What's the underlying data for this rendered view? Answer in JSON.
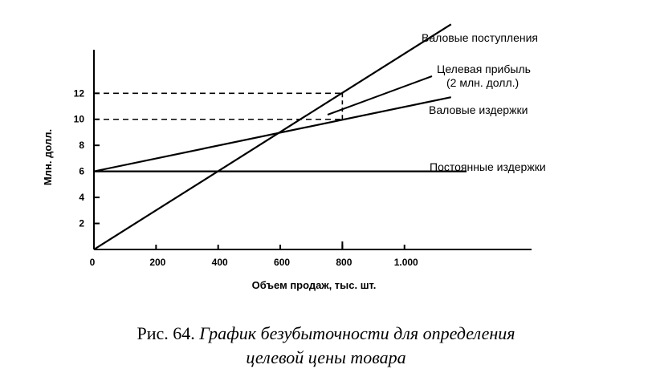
{
  "chart_data": {
    "type": "line",
    "xlabel": "Объем продаж, тыс. шт.",
    "ylabel": "Млн. долл.",
    "xlim": [
      0,
      1200
    ],
    "ylim": [
      0,
      16
    ],
    "x_ticks": [
      0,
      200,
      400,
      600,
      800,
      1000
    ],
    "x_tick_labels": [
      "0",
      "200",
      "400",
      "600",
      "800",
      "1.000"
    ],
    "y_ticks": [
      2,
      4,
      6,
      8,
      10,
      12
    ],
    "y_tick_labels": [
      "2",
      "4",
      "6",
      "8",
      "10",
      "12"
    ],
    "grid": false,
    "series": [
      {
        "name": "Валовые поступления",
        "x": [
          0,
          1150
        ],
        "y": [
          0,
          17.3
        ]
      },
      {
        "name": "Валовые издержки",
        "x": [
          0,
          1150
        ],
        "y": [
          6,
          11.7
        ]
      },
      {
        "name": "Постоянные издержки",
        "x": [
          0,
          1200
        ],
        "y": [
          6,
          6
        ]
      }
    ],
    "annotations": {
      "target_profit": [
        "Целевая прибыль",
        "(2 млн. долл.)"
      ],
      "target_volume": 800,
      "reference_levels": [
        12,
        10
      ]
    }
  },
  "caption": {
    "prefix": "Рис. 64. ",
    "title_line1": "График безубыточности для определения",
    "title_line2": "целевой цены товара"
  }
}
